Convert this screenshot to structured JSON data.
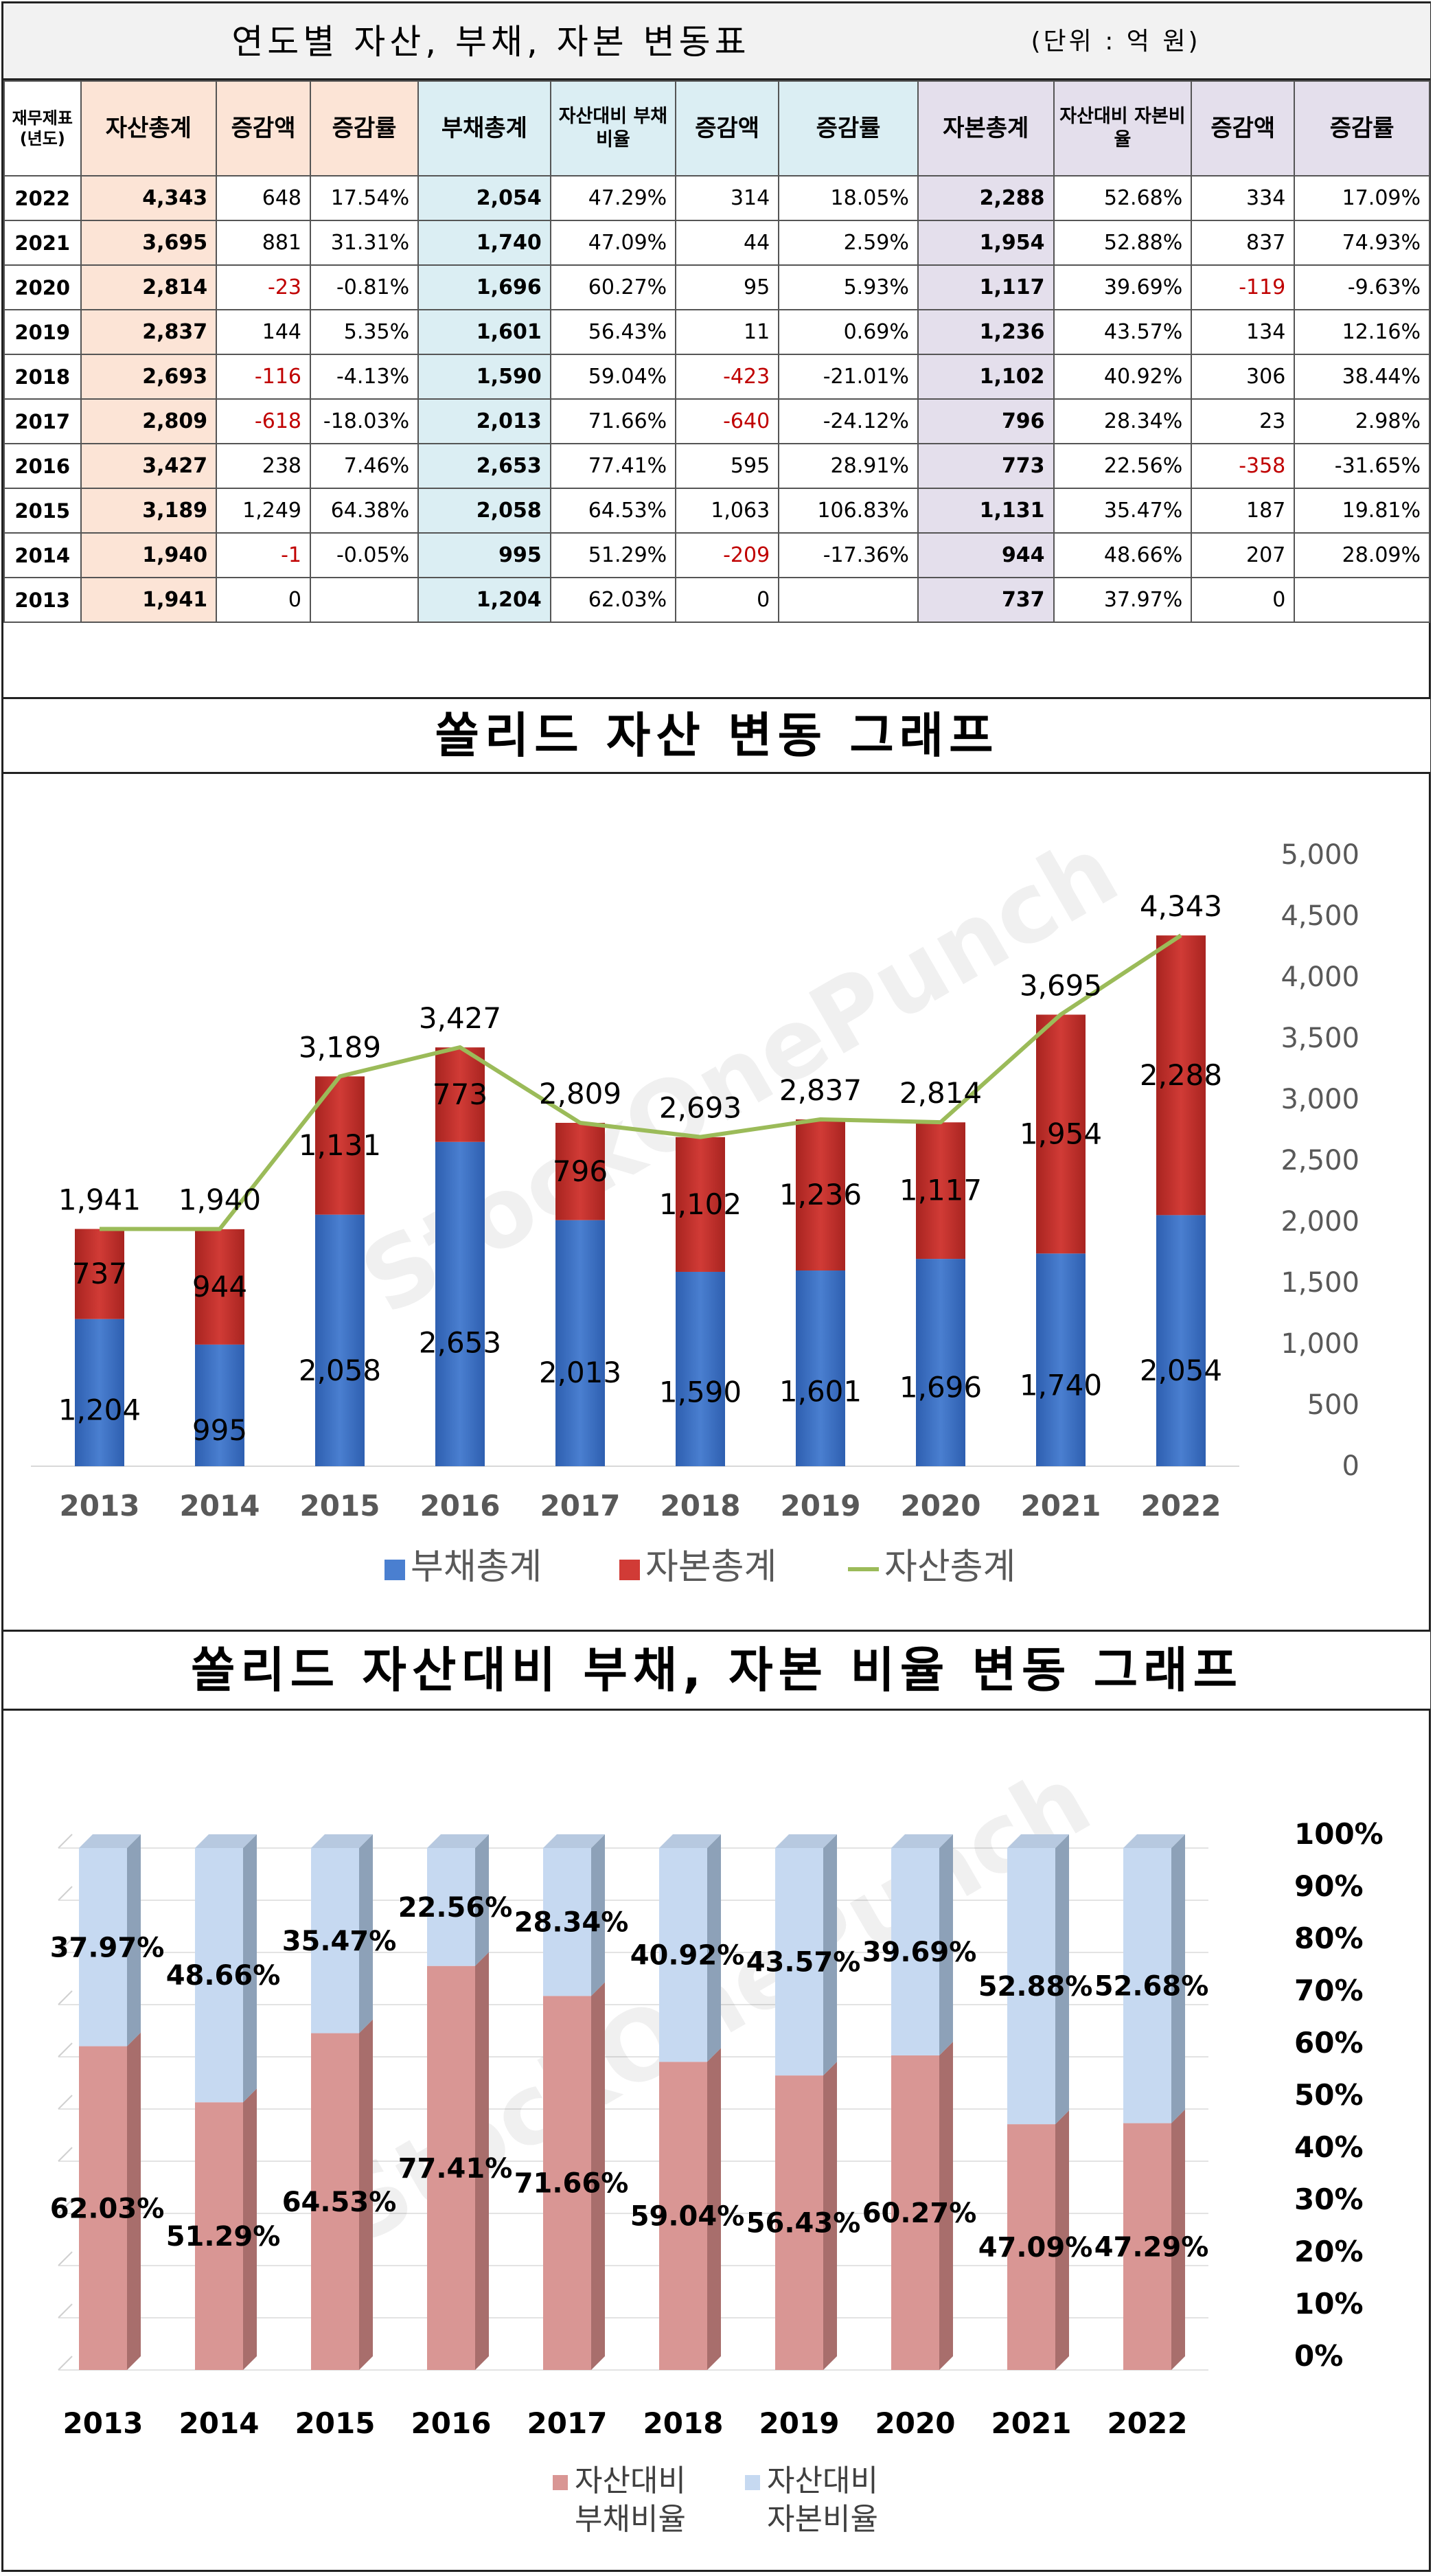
{
  "table": {
    "title": "연도별 자산, 부채, 자본 변동표",
    "unit": "(단위 : 억 원)",
    "headers": [
      "재무제표 (년도)",
      "자산총계",
      "증감액",
      "증감률",
      "부채총계",
      "자산대비 부채비율",
      "증감액",
      "증감률",
      "자본총계",
      "자산대비 자본비율",
      "증감액",
      "증감률"
    ],
    "rows": [
      [
        "2022",
        "4,343",
        "648",
        "17.54%",
        "2,054",
        "47.29%",
        "314",
        "18.05%",
        "2,288",
        "52.68%",
        "334",
        "17.09%"
      ],
      [
        "2021",
        "3,695",
        "881",
        "31.31%",
        "1,740",
        "47.09%",
        "44",
        "2.59%",
        "1,954",
        "52.88%",
        "837",
        "74.93%"
      ],
      [
        "2020",
        "2,814",
        "-23",
        "-0.81%",
        "1,696",
        "60.27%",
        "95",
        "5.93%",
        "1,117",
        "39.69%",
        "-119",
        "-9.63%"
      ],
      [
        "2019",
        "2,837",
        "144",
        "5.35%",
        "1,601",
        "56.43%",
        "11",
        "0.69%",
        "1,236",
        "43.57%",
        "134",
        "12.16%"
      ],
      [
        "2018",
        "2,693",
        "-116",
        "-4.13%",
        "1,590",
        "59.04%",
        "-423",
        "-21.01%",
        "1,102",
        "40.92%",
        "306",
        "38.44%"
      ],
      [
        "2017",
        "2,809",
        "-618",
        "-18.03%",
        "2,013",
        "71.66%",
        "-640",
        "-24.12%",
        "796",
        "28.34%",
        "23",
        "2.98%"
      ],
      [
        "2016",
        "3,427",
        "238",
        "7.46%",
        "2,653",
        "77.41%",
        "595",
        "28.91%",
        "773",
        "22.56%",
        "-358",
        "-31.65%"
      ],
      [
        "2015",
        "3,189",
        "1,249",
        "64.38%",
        "2,058",
        "64.53%",
        "1,063",
        "106.83%",
        "1,131",
        "35.47%",
        "187",
        "19.81%"
      ],
      [
        "2014",
        "1,940",
        "-1",
        "-0.05%",
        "995",
        "51.29%",
        "-209",
        "-17.36%",
        "944",
        "48.66%",
        "207",
        "28.09%"
      ],
      [
        "2013",
        "1,941",
        "0",
        "",
        "1,204",
        "62.03%",
        "0",
        "",
        "737",
        "37.97%",
        "0",
        ""
      ]
    ]
  },
  "watermark": "StockOnePunch",
  "colors": {
    "debt": "#4a7fd0",
    "capital": "#d13b36",
    "assets_line": "#9bbb59",
    "debt_ratio": "#d99694",
    "capital_ratio": "#c6d9f1",
    "negative": "#c00000"
  },
  "chart_data": [
    {
      "type": "bar",
      "stacked": true,
      "title": "쏠리드 자산 변동 그래프",
      "categories": [
        "2013",
        "2014",
        "2015",
        "2016",
        "2017",
        "2018",
        "2019",
        "2020",
        "2021",
        "2022"
      ],
      "series": [
        {
          "name": "부채총계",
          "kind": "bar",
          "values": [
            1204,
            995,
            2058,
            2653,
            2013,
            1590,
            1601,
            1696,
            1740,
            2054
          ]
        },
        {
          "name": "자본총계",
          "kind": "bar",
          "values": [
            737,
            944,
            1131,
            773,
            796,
            1102,
            1236,
            1117,
            1954,
            2288
          ]
        },
        {
          "name": "자산총계",
          "kind": "line",
          "values": [
            1941,
            1940,
            3189,
            3427,
            2809,
            2693,
            2837,
            2814,
            3695,
            4343
          ]
        }
      ],
      "ylim": [
        0,
        5000
      ],
      "yticks": [
        "0",
        "500",
        "1,000",
        "1,500",
        "2,000",
        "2,500",
        "3,000",
        "3,500",
        "4,000",
        "4,500",
        "5,000"
      ],
      "y_axis_side": "right",
      "legend": "bottom"
    },
    {
      "type": "bar",
      "stacked": true,
      "percent": true,
      "title": "쏠리드 자산대비 부채, 자본 비율 변동 그래프",
      "categories": [
        "2013",
        "2014",
        "2015",
        "2016",
        "2017",
        "2018",
        "2019",
        "2020",
        "2021",
        "2022"
      ],
      "series": [
        {
          "name": "자산대비 부채비율",
          "values": [
            62.03,
            51.29,
            64.53,
            77.41,
            71.66,
            59.04,
            56.43,
            60.27,
            47.09,
            47.29
          ]
        },
        {
          "name": "자산대비 자본비율",
          "values": [
            37.97,
            48.66,
            35.47,
            22.56,
            28.34,
            40.92,
            43.57,
            39.69,
            52.88,
            52.68
          ]
        }
      ],
      "ylim": [
        0,
        100
      ],
      "yticks": [
        "0%",
        "10%",
        "20%",
        "30%",
        "40%",
        "50%",
        "60%",
        "70%",
        "80%",
        "90%",
        "100%"
      ],
      "y_axis_side": "right",
      "legend": "bottom"
    }
  ]
}
